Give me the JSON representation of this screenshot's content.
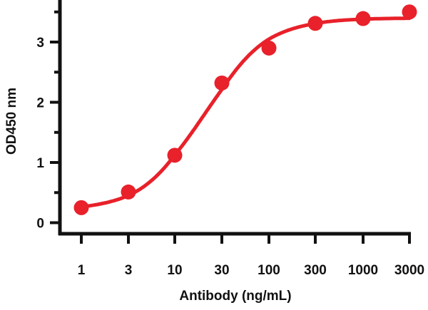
{
  "chart_data": {
    "type": "scatter",
    "xlabel": "Antibody (ng/mL)",
    "ylabel": "OD450 nm",
    "x_scale": "log",
    "x_ticks": [
      1,
      3,
      10,
      30,
      100,
      300,
      1000,
      3000
    ],
    "x_tick_labels": [
      "1",
      "3",
      "10",
      "30",
      "100",
      "300",
      "1000",
      "3000"
    ],
    "y_ticks": [
      0,
      1,
      2,
      3
    ],
    "y_tick_labels": [
      "0",
      "1",
      "2",
      "3"
    ],
    "ylim": [
      -0.15,
      3.7
    ],
    "grid": false,
    "series": [
      {
        "x": [
          1,
          3,
          10,
          30,
          100,
          300,
          1000,
          3000
        ],
        "y": [
          0.25,
          0.51,
          1.12,
          2.32,
          2.9,
          3.31,
          3.39,
          3.5
        ]
      }
    ],
    "fit": {
      "model": "4PL",
      "bottom": 0.2,
      "top": 3.4,
      "ec50": 20,
      "hill": 1.3
    },
    "color": "#e8212a"
  }
}
